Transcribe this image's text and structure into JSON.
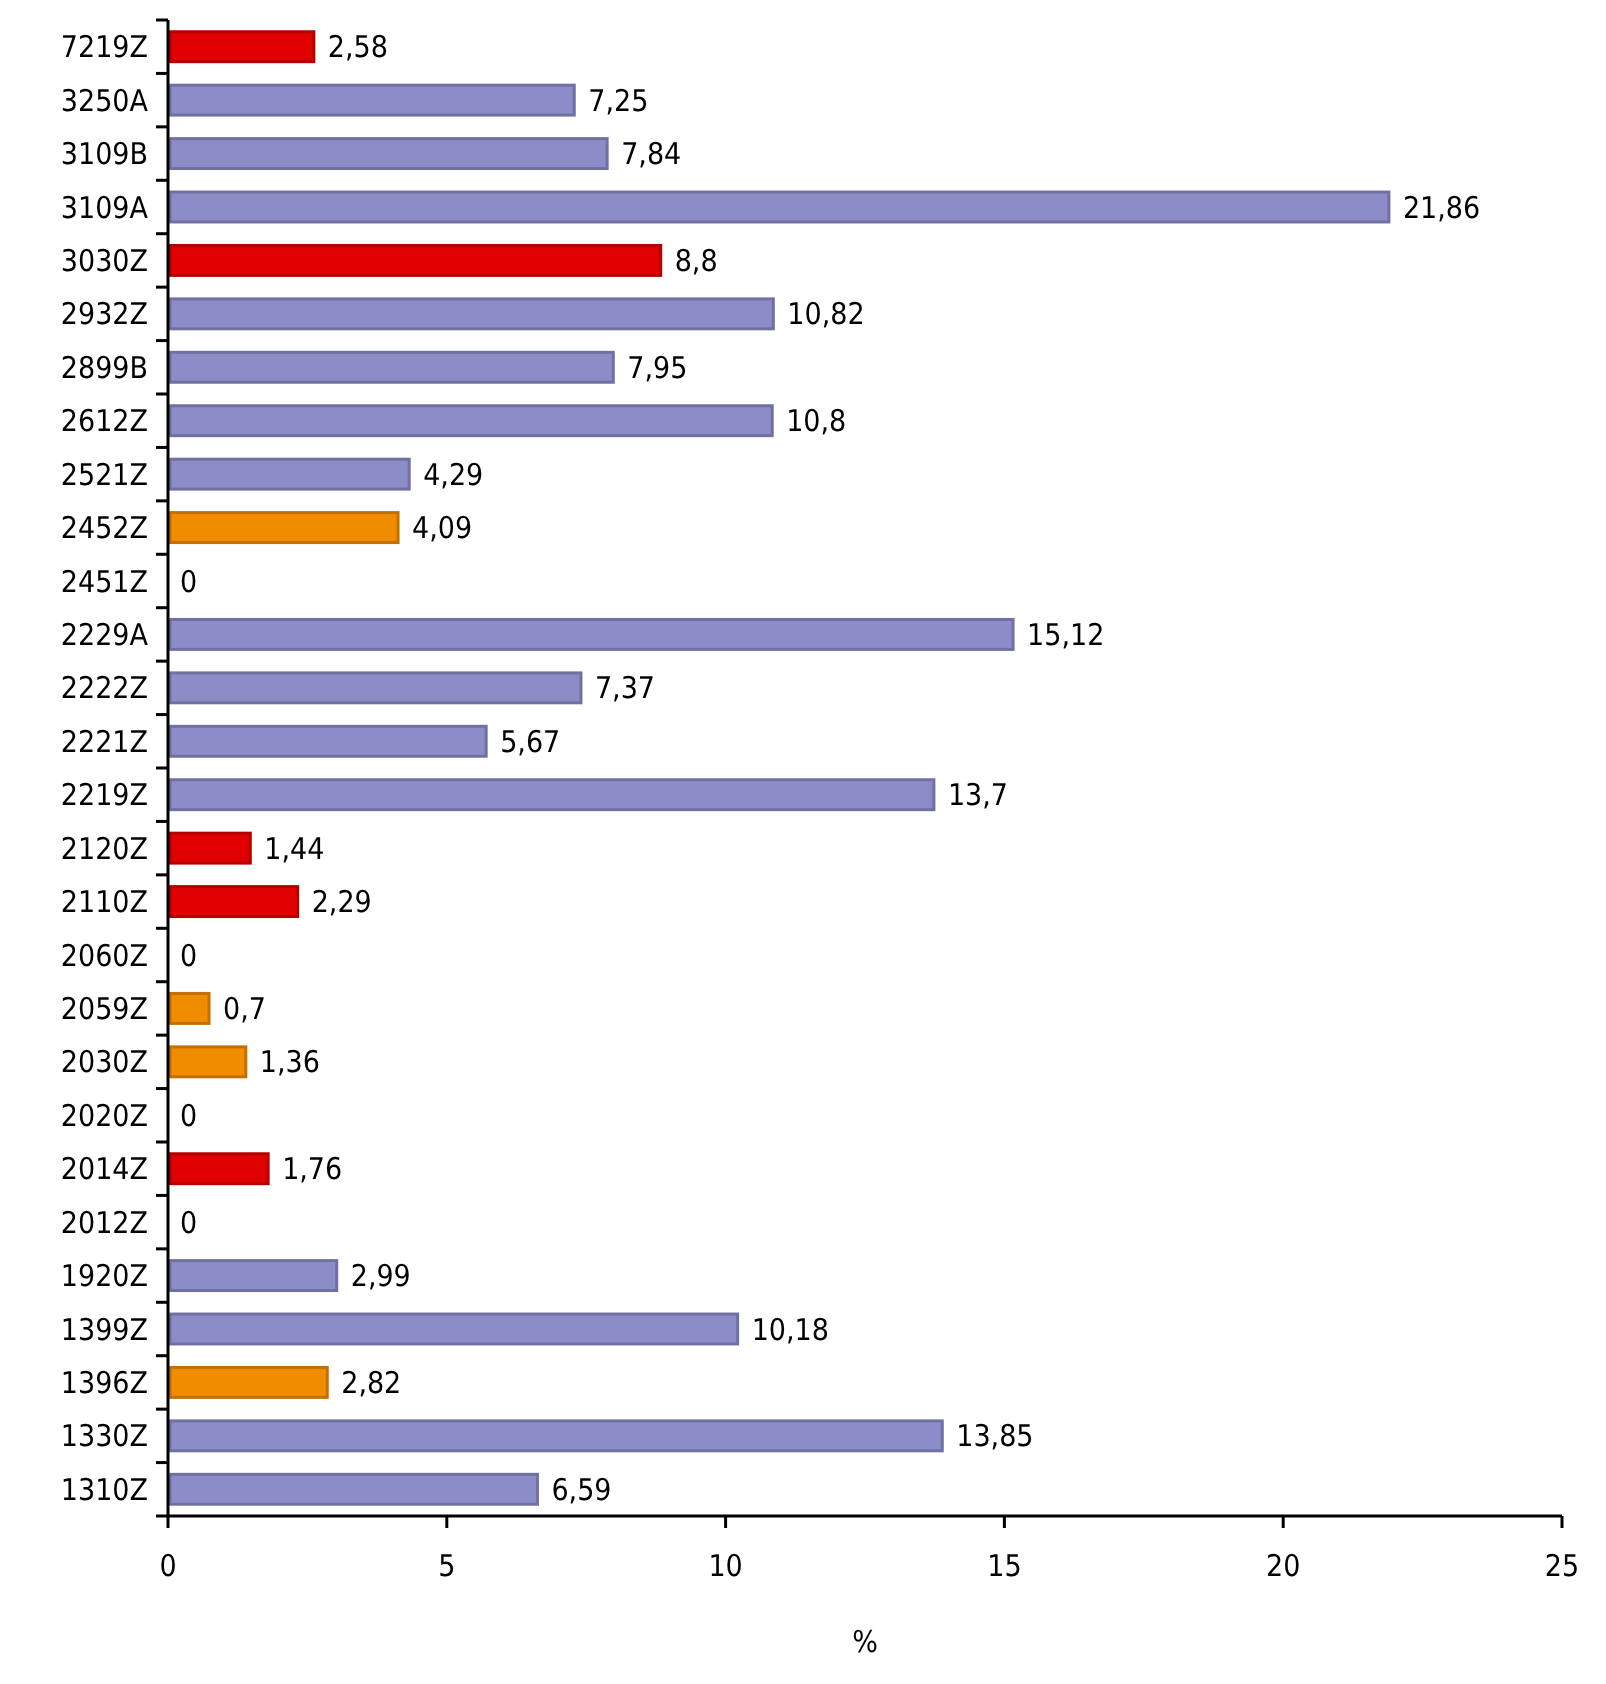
{
  "chart_data": {
    "type": "bar",
    "orientation": "horizontal",
    "xlabel": "%",
    "categories": [
      "7219Z",
      "3250A",
      "3109B",
      "3109A",
      "3030Z",
      "2932Z",
      "2899B",
      "2612Z",
      "2521Z",
      "2452Z",
      "2451Z",
      "2229A",
      "2222Z",
      "2221Z",
      "2219Z",
      "2120Z",
      "2110Z",
      "2060Z",
      "2059Z",
      "2030Z",
      "2020Z",
      "2014Z",
      "2012Z",
      "1920Z",
      "1399Z",
      "1396Z",
      "1330Z",
      "1310Z"
    ],
    "values": [
      2.58,
      7.25,
      7.84,
      21.86,
      8.8,
      10.82,
      7.95,
      10.8,
      4.29,
      4.09,
      0,
      15.12,
      7.37,
      5.67,
      13.7,
      1.44,
      2.29,
      0,
      0.7,
      1.36,
      0,
      1.76,
      0,
      2.99,
      10.18,
      2.82,
      13.85,
      6.59
    ],
    "value_labels": [
      "2,58",
      "7,25",
      "7,84",
      "21,86",
      "8,8",
      "10,82",
      "7,95",
      "10,8",
      "4,29",
      "4,09",
      "0",
      "15,12",
      "7,37",
      "5,67",
      "13,7",
      "1,44",
      "2,29",
      "0",
      "0,7",
      "1,36",
      "0",
      "1,76",
      "0",
      "2,99",
      "10,18",
      "2,82",
      "13,85",
      "6,59"
    ],
    "colors": [
      "#e00000",
      "#8c8cc8",
      "#8c8cc8",
      "#8c8cc8",
      "#e00000",
      "#8c8cc8",
      "#8c8cc8",
      "#8c8cc8",
      "#8c8cc8",
      "#f08c00",
      "#8c8cc8",
      "#8c8cc8",
      "#8c8cc8",
      "#8c8cc8",
      "#8c8cc8",
      "#e00000",
      "#e00000",
      "#8c8cc8",
      "#f08c00",
      "#f08c00",
      "#8c8cc8",
      "#e00000",
      "#8c8cc8",
      "#8c8cc8",
      "#8c8cc8",
      "#f08c00",
      "#8c8cc8",
      "#8c8cc8"
    ],
    "xlim": [
      0,
      25
    ],
    "xticks": [
      0,
      5,
      10,
      15,
      20,
      25
    ],
    "grid": false
  }
}
